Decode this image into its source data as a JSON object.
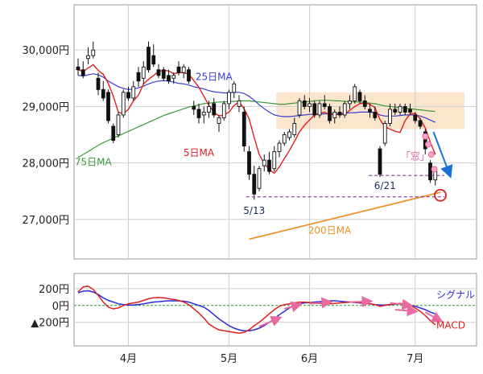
{
  "chart_data": [
    {
      "type": "candlestick",
      "yticks": [
        {
          "v": 30000,
          "label": "30,000円"
        },
        {
          "v": 29000,
          "label": "29,000円"
        },
        {
          "v": 28000,
          "label": "28,000円"
        },
        {
          "v": 27000,
          "label": "27,000円"
        }
      ],
      "ylim": [
        26300,
        30800
      ],
      "grid": true,
      "colors": {
        "up": "#ffffff",
        "down": "#111111",
        "ma5": "#e02020",
        "ma25": "#3a3ad0",
        "ma75": "#3a9a3a",
        "ma200": "#f0902a",
        "zone": "#fbe0c4",
        "support": "#7a1f8a",
        "arrow": "#1a6fd8",
        "mark": "#e02020"
      },
      "candles": [
        [
          29700,
          29850,
          29550,
          29650
        ],
        [
          29650,
          29800,
          29500,
          29550
        ],
        [
          29850,
          30050,
          29750,
          29900
        ],
        [
          29900,
          30150,
          29850,
          30000
        ],
        [
          29500,
          29600,
          29200,
          29300
        ],
        [
          29300,
          29450,
          29100,
          29150
        ],
        [
          29250,
          29300,
          28700,
          28750
        ],
        [
          28650,
          28700,
          28350,
          28400
        ],
        [
          28500,
          28900,
          28450,
          28850
        ],
        [
          28850,
          29300,
          28800,
          29250
        ],
        [
          29250,
          29350,
          29100,
          29150
        ],
        [
          29150,
          29450,
          29100,
          29350
        ],
        [
          29600,
          29700,
          29350,
          29450
        ],
        [
          29500,
          29800,
          29400,
          29700
        ],
        [
          30050,
          30150,
          29600,
          29650
        ],
        [
          29900,
          30100,
          29700,
          29750
        ],
        [
          29650,
          29750,
          29500,
          29550
        ],
        [
          29650,
          29700,
          29450,
          29500
        ],
        [
          29550,
          29650,
          29400,
          29450
        ],
        [
          29500,
          29600,
          29400,
          29550
        ],
        [
          29700,
          29800,
          29550,
          29600
        ],
        [
          29600,
          29750,
          29500,
          29700
        ],
        [
          29650,
          29700,
          29400,
          29450
        ],
        [
          29000,
          29100,
          28850,
          28950
        ],
        [
          28950,
          29050,
          28700,
          28800
        ],
        [
          28850,
          29000,
          28700,
          28900
        ],
        [
          28900,
          29100,
          28800,
          29000
        ],
        [
          29050,
          29150,
          28800,
          28850
        ],
        [
          28700,
          28850,
          28550,
          28800
        ],
        [
          28800,
          29100,
          28750,
          29050
        ],
        [
          29050,
          29300,
          28950,
          29250
        ],
        [
          29250,
          29450,
          29150,
          29400
        ],
        [
          29000,
          29200,
          28900,
          29100
        ],
        [
          28900,
          29000,
          28200,
          28300
        ],
        [
          28200,
          28300,
          27700,
          27800
        ],
        [
          27800,
          27950,
          27350,
          27450
        ],
        [
          27550,
          27950,
          27500,
          27900
        ],
        [
          27950,
          28150,
          27850,
          28050
        ],
        [
          28050,
          28200,
          27800,
          27850
        ],
        [
          27900,
          28300,
          27850,
          28200
        ],
        [
          28200,
          28400,
          28100,
          28350
        ],
        [
          28350,
          28550,
          28300,
          28500
        ],
        [
          28450,
          28600,
          28400,
          28550
        ],
        [
          28500,
          28800,
          28450,
          28700
        ],
        [
          28850,
          29150,
          28800,
          29100
        ],
        [
          29100,
          29200,
          28950,
          29000
        ],
        [
          29000,
          29150,
          28900,
          29050
        ],
        [
          29050,
          29100,
          28800,
          28850
        ],
        [
          28850,
          29100,
          28800,
          29050
        ],
        [
          29050,
          29200,
          28950,
          29000
        ],
        [
          29000,
          29050,
          28700,
          28750
        ],
        [
          28800,
          28950,
          28700,
          28900
        ],
        [
          28900,
          29000,
          28800,
          28850
        ],
        [
          28850,
          29100,
          28800,
          29050
        ],
        [
          29050,
          29200,
          28950,
          29100
        ],
        [
          29100,
          29400,
          29050,
          29350
        ],
        [
          29250,
          29300,
          29050,
          29100
        ],
        [
          29100,
          29200,
          28950,
          29000
        ],
        [
          28950,
          29050,
          28800,
          28900
        ],
        [
          28900,
          29000,
          28750,
          28800
        ],
        [
          28250,
          28300,
          27750,
          27800
        ],
        [
          28350,
          28750,
          28300,
          28700
        ],
        [
          28700,
          29050,
          28650,
          28950
        ],
        [
          28950,
          29050,
          28850,
          28900
        ],
        [
          28900,
          29050,
          28850,
          29000
        ],
        [
          29000,
          29050,
          28850,
          28900
        ],
        [
          28950,
          29050,
          28850,
          28900
        ],
        [
          28850,
          28900,
          28700,
          28750
        ],
        [
          28750,
          28800,
          28600,
          28650
        ],
        [
          28550,
          28600,
          28150,
          28250
        ],
        [
          28000,
          28050,
          27650,
          27700
        ],
        [
          27700,
          27900,
          27600,
          27850
        ]
      ],
      "ma5": [
        29650,
        29620,
        29680,
        29740,
        29640,
        29570,
        29410,
        29180,
        28900,
        28870,
        28950,
        29100,
        29200,
        29400,
        29480,
        29550,
        29620,
        29640,
        29630,
        29580,
        29600,
        29600,
        29570,
        29460,
        29340,
        29180,
        29020,
        28900,
        28830,
        28850,
        28900,
        29020,
        29080,
        28960,
        28780,
        28450,
        28150,
        27990,
        27880,
        27820,
        27930,
        28080,
        28220,
        28380,
        28550,
        28670,
        28760,
        28850,
        28880,
        28900,
        28850,
        28870,
        28850,
        28870,
        28930,
        29000,
        29050,
        29060,
        29040,
        28980,
        28770,
        28640,
        28600,
        28560,
        28540,
        28750,
        28870,
        28880,
        28780,
        28620,
        28370,
        28150
      ],
      "ma25": [
        29550,
        29540,
        29560,
        29580,
        29560,
        29520,
        29450,
        29400,
        29350,
        29320,
        29300,
        29310,
        29330,
        29360,
        29400,
        29430,
        29450,
        29460,
        29450,
        29430,
        29410,
        29400,
        29380,
        29350,
        29330,
        29310,
        29280,
        29260,
        29250,
        29240,
        29240,
        29250,
        29250,
        29230,
        29180,
        29110,
        29030,
        28960,
        28900,
        28850,
        28830,
        28820,
        28820,
        28830,
        28840,
        28850,
        28860,
        28860,
        28860,
        28870,
        28870,
        28870,
        28870,
        28880,
        28890,
        28890,
        28900,
        28900,
        28900,
        28890,
        28850,
        28830,
        28830,
        28830,
        28840,
        28850,
        28850,
        28850,
        28830,
        28800,
        28760,
        28720
      ],
      "ma75": [
        28100,
        28150,
        28200,
        28260,
        28310,
        28360,
        28400,
        28440,
        28480,
        28520,
        28560,
        28600,
        28640,
        28680,
        28720,
        28760,
        28800,
        28840,
        28870,
        28900,
        28930,
        28960,
        28990,
        29010,
        29030,
        29050,
        29060,
        29070,
        29080,
        29080,
        29090,
        29090,
        29100,
        29100,
        29100,
        29090,
        29080,
        29070,
        29060,
        29050,
        29040,
        29040,
        29050,
        29060,
        29070,
        29080,
        29090,
        29100,
        29110,
        29110,
        29110,
        29100,
        29100,
        29090,
        29090,
        29080,
        29080,
        29070,
        29060,
        29050,
        29030,
        29010,
        29000,
        28990,
        28980,
        28970,
        28960,
        28950,
        28940,
        28930,
        28920,
        28910
      ],
      "ma200": [
        [
          34,
          26650
        ],
        [
          72,
          27480
        ]
      ],
      "annotations": [
        {
          "text": "25日MA",
          "color": "#3a3ad0",
          "v": 29470,
          "i": 27
        },
        {
          "text": "75日MA",
          "color": "#3a9a3a",
          "v": 27960,
          "i": 3
        },
        {
          "text": "5日MA",
          "color": "#e02020",
          "v": 28120,
          "i": 24
        },
        {
          "text": "200日MA",
          "color": "#f0902a",
          "v": 26750,
          "i": 50
        },
        {
          "text": "「窓」",
          "color": "#e86aa0",
          "v": 28060,
          "i": 67
        },
        {
          "text": "5/13",
          "color": "#1a2a5a",
          "v": 27100,
          "i": 35
        },
        {
          "text": "6/21",
          "color": "#1a2a5a",
          "v": 27540,
          "i": 61
        }
      ],
      "zone": [
        28600,
        29250
      ],
      "support": [
        27780,
        27400
      ],
      "gap_circles": [
        28470,
        28330,
        28150,
        27890
      ]
    },
    {
      "type": "line",
      "yticks": [
        {
          "v": 200,
          "label": "200円"
        },
        {
          "v": 0,
          "label": "0円"
        },
        {
          "v": -200,
          "label": "▲200円"
        }
      ],
      "ylim": [
        -480,
        380
      ],
      "series": [
        {
          "name": "シグナル",
          "color": "#2a2ad8",
          "values": [
            150,
            170,
            175,
            160,
            130,
            90,
            60,
            40,
            20,
            10,
            5,
            5,
            10,
            20,
            30,
            40,
            45,
            50,
            55,
            55,
            55,
            50,
            40,
            20,
            0,
            -20,
            -60,
            -110,
            -160,
            -200,
            -240,
            -270,
            -290,
            -300,
            -300,
            -290,
            -270,
            -240,
            -200,
            -160,
            -110,
            -70,
            -30,
            0,
            20,
            30,
            35,
            40,
            45,
            50,
            55,
            55,
            50,
            45,
            40,
            35,
            30,
            25,
            20,
            10,
            5,
            5,
            10,
            15,
            20,
            15,
            5,
            -10,
            -30,
            -50,
            -80,
            -100
          ]
        },
        {
          "name": "MACD",
          "color": "#e02020",
          "values": [
            160,
            220,
            230,
            190,
            120,
            40,
            -20,
            -40,
            -30,
            0,
            20,
            30,
            40,
            60,
            80,
            90,
            95,
            90,
            80,
            70,
            60,
            40,
            10,
            -40,
            -90,
            -150,
            -220,
            -260,
            -290,
            -300,
            -310,
            -320,
            -330,
            -320,
            -290,
            -240,
            -200,
            -150,
            -100,
            -50,
            -10,
            10,
            20,
            30,
            40,
            40,
            35,
            30,
            25,
            20,
            20,
            25,
            30,
            35,
            40,
            40,
            35,
            30,
            20,
            10,
            -10,
            0,
            10,
            20,
            25,
            15,
            0,
            -30,
            -70,
            -120,
            -180,
            -230
          ]
        }
      ],
      "zero_line": true
    }
  ],
  "x_labels": [
    {
      "label": "4月",
      "i": 10
    },
    {
      "label": "5月",
      "i": 30
    },
    {
      "label": "6月",
      "i": 46
    },
    {
      "label": "7月",
      "i": 67
    }
  ]
}
